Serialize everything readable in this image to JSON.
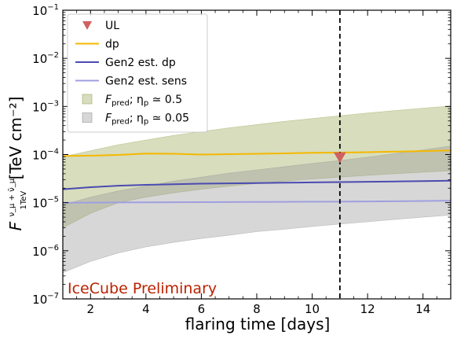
{
  "chart_data": {
    "type": "line",
    "title": "",
    "xlabel": "flaring time [days]",
    "ylabel": {
      "base": "F",
      "super": "ν_μ + ν̄_μ",
      "sub": "1TeV",
      "unit": "[TeV cm⁻²]"
    },
    "xlim": [
      1,
      15
    ],
    "ylim": [
      1e-07,
      0.1
    ],
    "yscale": "log",
    "x_ticks": [
      2,
      4,
      6,
      8,
      10,
      12,
      14
    ],
    "y_ticks": [
      {
        "value": 1e-07,
        "base": "10",
        "exp": "−7"
      },
      {
        "value": 1e-06,
        "base": "10",
        "exp": "−6"
      },
      {
        "value": 1e-05,
        "base": "10",
        "exp": "−5"
      },
      {
        "value": 0.0001,
        "base": "10",
        "exp": "−4"
      },
      {
        "value": 0.001,
        "base": "10",
        "exp": "−3"
      },
      {
        "value": 0.01,
        "base": "10",
        "exp": "−2"
      },
      {
        "value": 0.1,
        "base": "10",
        "exp": "−1"
      }
    ],
    "annotation": "IceCube Preliminary",
    "annotation_color": "#bb2200",
    "vline": {
      "x": 11.0,
      "color": "#000000",
      "style": "dashed"
    },
    "series": [
      {
        "name": "dp",
        "color": "#f5b800",
        "x": [
          1,
          2,
          3,
          4,
          5,
          6,
          7,
          8,
          9,
          10,
          11,
          12,
          13,
          14,
          15
        ],
        "y": [
          9.3e-05,
          9.5e-05,
          9.8e-05,
          0.000105,
          0.000104,
          0.0001,
          0.000102,
          0.000104,
          0.000106,
          0.000109,
          0.00011,
          0.000112,
          0.000115,
          0.000118,
          0.000122
        ]
      },
      {
        "name": "Gen2 est. dp",
        "color": "#4b4bb0",
        "x": [
          1,
          2,
          3,
          4,
          5,
          6,
          7,
          8,
          9,
          10,
          11,
          12,
          13,
          14,
          15
        ],
        "y": [
          1.9e-05,
          2.1e-05,
          2.25e-05,
          2.35e-05,
          2.42e-05,
          2.48e-05,
          2.52e-05,
          2.56e-05,
          2.6e-05,
          2.64e-05,
          2.68e-05,
          2.72e-05,
          2.76e-05,
          2.8e-05,
          2.85e-05
        ]
      },
      {
        "name": "Gen2 est. sens",
        "color": "#9f9fe0",
        "x": [
          1,
          3,
          5,
          7,
          9,
          11,
          13,
          15
        ],
        "y": [
          1e-05,
          1.01e-05,
          1.02e-05,
          1.03e-05,
          1.04e-05,
          1.05e-05,
          1.07e-05,
          1.1e-05
        ]
      }
    ],
    "bands": [
      {
        "name": "F_pred; η_p ≃ 0.5",
        "color": "#9aab5a",
        "opacity": 0.4,
        "x": [
          1,
          2,
          3,
          4,
          5,
          6,
          7,
          8,
          9,
          10,
          11,
          12,
          13,
          14,
          15
        ],
        "lower": [
          3e-06,
          6e-06,
          1e-05,
          1.3e-05,
          1.6e-05,
          1.9e-05,
          2.2e-05,
          2.5e-05,
          2.8e-05,
          3.1e-05,
          3.4e-05,
          3.7e-05,
          4e-05,
          4.3e-05,
          4.6e-05
        ],
        "upper": [
          9e-05,
          0.00012,
          0.00016,
          0.0002,
          0.00025,
          0.0003,
          0.00036,
          0.00042,
          0.00049,
          0.00056,
          0.00064,
          0.00073,
          0.00082,
          0.00092,
          0.00102
        ]
      },
      {
        "name": "F_pred; η_p ≃ 0.05",
        "color": "#9a9a9a",
        "opacity": 0.4,
        "x": [
          1,
          2,
          3,
          4,
          5,
          6,
          7,
          8,
          9,
          10,
          11,
          12,
          13,
          14,
          15
        ],
        "lower": [
          3.5e-07,
          6e-07,
          9e-07,
          1.2e-06,
          1.5e-06,
          1.8e-06,
          2.1e-06,
          2.5e-06,
          2.8e-06,
          3.2e-06,
          3.6e-06,
          4e-06,
          4.5e-06,
          5e-06,
          5.5e-06
        ],
        "upper": [
          9e-06,
          1.3e-05,
          1.75e-05,
          2.2e-05,
          2.8e-05,
          3.4e-05,
          4.1e-05,
          4.8e-05,
          5.6e-05,
          6.5e-05,
          7.5e-05,
          8.8e-05,
          0.000105,
          0.000125,
          0.00015
        ]
      }
    ],
    "markers": [
      {
        "name": "UL",
        "type": "triangle-down",
        "color": "#d06060",
        "x": 11.0,
        "y": 8.8e-05
      }
    ],
    "legend": {
      "placement": "top-left",
      "entries": [
        {
          "kind": "marker",
          "label": "UL",
          "color": "#d06060"
        },
        {
          "kind": "line",
          "label": "dp",
          "color": "#f5b800"
        },
        {
          "kind": "line",
          "label": "Gen2 est. dp",
          "color": "#4b4bb0"
        },
        {
          "kind": "line",
          "label": "Gen2 est. sens",
          "color": "#9f9fe0"
        },
        {
          "kind": "patch",
          "label_base": "F",
          "label_sub": "pred",
          "label_rest": "; η",
          "label_rest_sub": "p",
          "label_tail": " ≃ 0.5",
          "color": "#9aab5a"
        },
        {
          "kind": "patch",
          "label_base": "F",
          "label_sub": "pred",
          "label_rest": "; η",
          "label_rest_sub": "p",
          "label_tail": " ≃ 0.05",
          "color": "#9a9a9a"
        }
      ]
    }
  }
}
